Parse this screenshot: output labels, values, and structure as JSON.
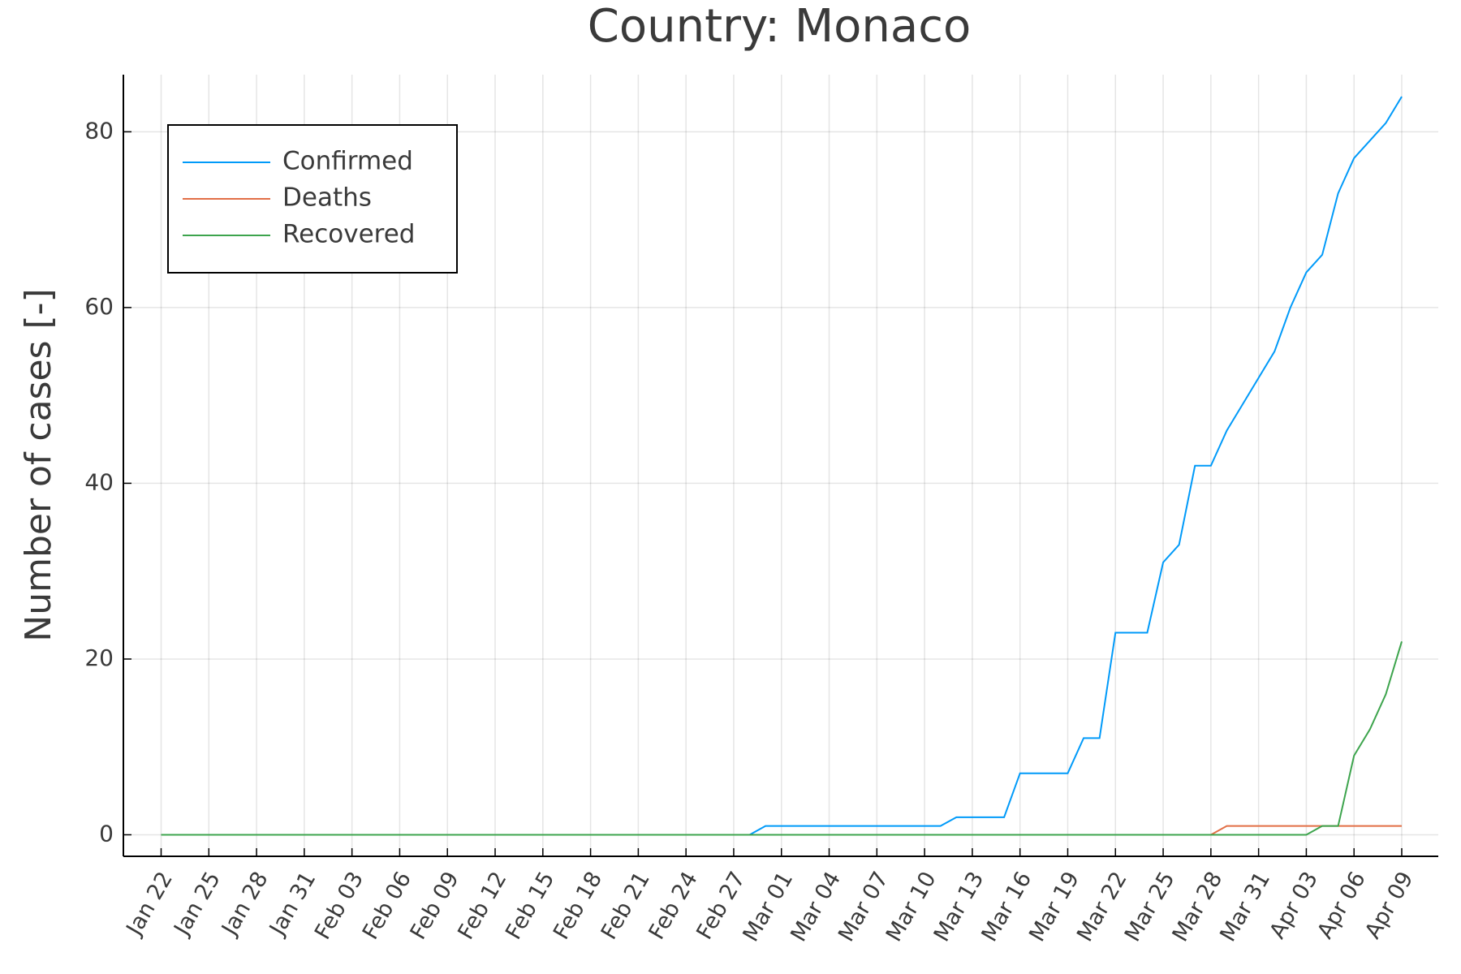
{
  "chart_data": {
    "type": "line",
    "title": "Country: Monaco",
    "ylabel": "Number of cases [-]",
    "categories": [
      "Jan 22",
      null,
      null,
      "Jan 25",
      null,
      null,
      "Jan 28",
      null,
      null,
      "Jan 31",
      null,
      null,
      "Feb 03",
      null,
      null,
      "Feb 06",
      null,
      null,
      "Feb 09",
      null,
      null,
      "Feb 12",
      null,
      null,
      "Feb 15",
      null,
      null,
      "Feb 18",
      null,
      null,
      "Feb 21",
      null,
      null,
      "Feb 24",
      null,
      null,
      "Feb 27",
      null,
      null,
      "Mar 01",
      null,
      null,
      "Mar 04",
      null,
      null,
      "Mar 07",
      null,
      null,
      "Mar 10",
      null,
      null,
      "Mar 13",
      null,
      null,
      "Mar 16",
      null,
      null,
      "Mar 19",
      null,
      null,
      "Mar 22",
      null,
      null,
      "Mar 25",
      null,
      null,
      "Mar 28",
      null,
      null,
      "Mar 31",
      null,
      null,
      "Apr 03",
      null,
      null,
      "Apr 06",
      null,
      null,
      "Apr 09"
    ],
    "series": [
      {
        "name": "Confirmed",
        "color": "#009af9",
        "values": [
          0,
          0,
          0,
          0,
          0,
          0,
          0,
          0,
          0,
          0,
          0,
          0,
          0,
          0,
          0,
          0,
          0,
          0,
          0,
          0,
          0,
          0,
          0,
          0,
          0,
          0,
          0,
          0,
          0,
          0,
          0,
          0,
          0,
          0,
          0,
          0,
          0,
          0,
          1,
          1,
          1,
          1,
          1,
          1,
          1,
          1,
          1,
          1,
          1,
          1,
          2,
          2,
          2,
          2,
          7,
          7,
          7,
          7,
          11,
          11,
          23,
          23,
          23,
          31,
          33,
          42,
          42,
          46,
          49,
          52,
          55,
          60,
          64,
          66,
          73,
          77,
          79,
          81,
          84
        ]
      },
      {
        "name": "Deaths",
        "color": "#e26f46",
        "values": [
          0,
          0,
          0,
          0,
          0,
          0,
          0,
          0,
          0,
          0,
          0,
          0,
          0,
          0,
          0,
          0,
          0,
          0,
          0,
          0,
          0,
          0,
          0,
          0,
          0,
          0,
          0,
          0,
          0,
          0,
          0,
          0,
          0,
          0,
          0,
          0,
          0,
          0,
          0,
          0,
          0,
          0,
          0,
          0,
          0,
          0,
          0,
          0,
          0,
          0,
          0,
          0,
          0,
          0,
          0,
          0,
          0,
          0,
          0,
          0,
          0,
          0,
          0,
          0,
          0,
          0,
          0,
          1,
          1,
          1,
          1,
          1,
          1,
          1,
          1,
          1,
          1,
          1,
          1
        ]
      },
      {
        "name": "Recovered",
        "color": "#3da44d",
        "values": [
          0,
          0,
          0,
          0,
          0,
          0,
          0,
          0,
          0,
          0,
          0,
          0,
          0,
          0,
          0,
          0,
          0,
          0,
          0,
          0,
          0,
          0,
          0,
          0,
          0,
          0,
          0,
          0,
          0,
          0,
          0,
          0,
          0,
          0,
          0,
          0,
          0,
          0,
          0,
          0,
          0,
          0,
          0,
          0,
          0,
          0,
          0,
          0,
          0,
          0,
          0,
          0,
          0,
          0,
          0,
          0,
          0,
          0,
          0,
          0,
          0,
          0,
          0,
          0,
          0,
          0,
          0,
          0,
          0,
          0,
          0,
          0,
          0,
          1,
          1,
          9,
          12,
          16,
          22
        ]
      }
    ],
    "ylim": [
      -2.45,
      86.5
    ],
    "yticks": [
      0,
      20,
      40,
      60,
      80
    ],
    "grid": true,
    "legend": "upper left"
  }
}
